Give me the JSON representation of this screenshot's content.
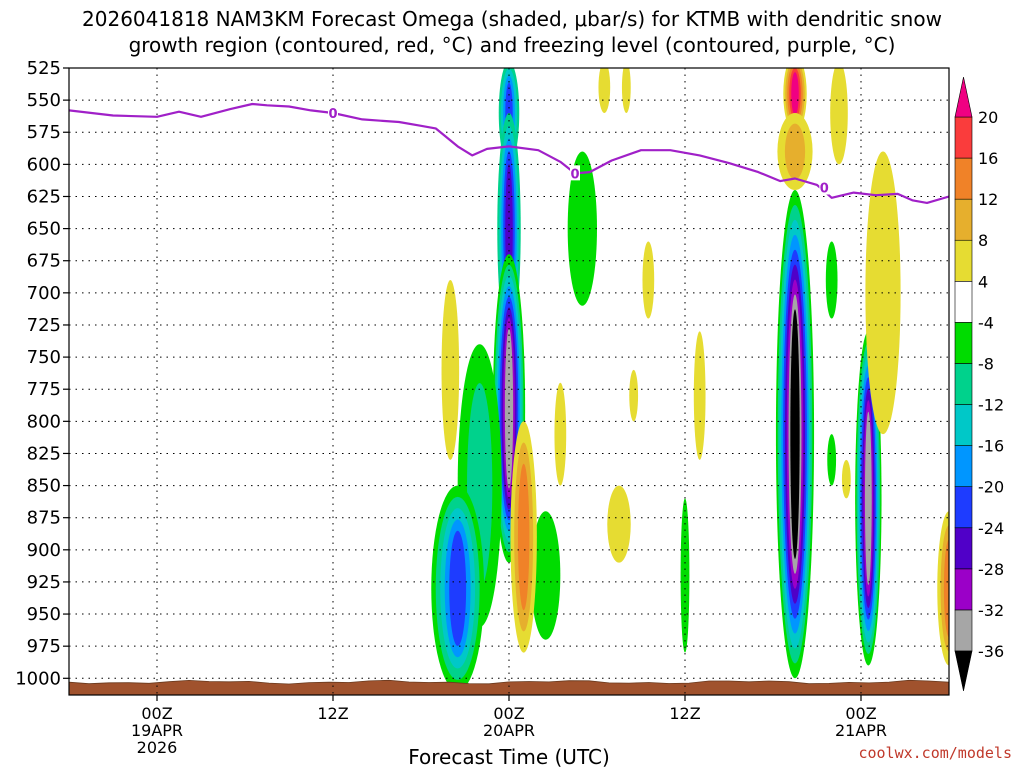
{
  "chart_data": {
    "type": "heatmap",
    "title_lines": [
      "2026041818 NAM3KM Forecast Omega (shaded, μbar/s) for KTMB with dendritic snow",
      "growth region (contoured, red, °C) and freezing level (contoured, purple, °C)"
    ],
    "xlabel": "Forecast Time (UTC)",
    "ylabel": "",
    "forecast_hours_range": [
      -6,
      54
    ],
    "pressure_range_hPa": [
      525,
      1013
    ],
    "y_ticks": [
      525,
      550,
      575,
      600,
      625,
      650,
      675,
      700,
      725,
      750,
      775,
      800,
      825,
      850,
      875,
      900,
      925,
      950,
      975,
      1000
    ],
    "x_ticks": [
      {
        "hour": 0,
        "label": "00Z",
        "sub1": "19APR",
        "sub2": "2026"
      },
      {
        "hour": 12,
        "label": "12Z",
        "sub1": "",
        "sub2": ""
      },
      {
        "hour": 24,
        "label": "00Z",
        "sub1": "20APR",
        "sub2": ""
      },
      {
        "hour": 36,
        "label": "12Z",
        "sub1": "",
        "sub2": ""
      },
      {
        "hour": 48,
        "label": "00Z",
        "sub1": "21APR",
        "sub2": ""
      }
    ],
    "grid": true,
    "colorbar": {
      "units": "μbar/s",
      "levels": [
        -36,
        -32,
        -28,
        -24,
        -20,
        -16,
        -12,
        -8,
        -4,
        4,
        8,
        12,
        16,
        20
      ],
      "tick_labels": [
        "-36",
        "-32",
        "-28",
        "-24",
        "-20",
        "-16",
        "-12",
        "-8",
        "-4",
        "4",
        "8",
        "12",
        "16",
        "20"
      ],
      "colors": [
        "#000000",
        "#a6a6a6",
        "#9b00c8",
        "#5000c8",
        "#1e3cff",
        "#0096ff",
        "#00c8c8",
        "#00d28c",
        "#00dc00",
        "#ffffff",
        "#e6dc32",
        "#e6af2d",
        "#f08228",
        "#fa3c3c",
        "#f00082"
      ]
    },
    "freezing_level": {
      "label": "0",
      "color": "#a020c8",
      "points": [
        {
          "hour": -6,
          "hPa": 558
        },
        {
          "hour": -3,
          "hPa": 562
        },
        {
          "hour": 0,
          "hPa": 563
        },
        {
          "hour": 1.5,
          "hPa": 559
        },
        {
          "hour": 3,
          "hPa": 563
        },
        {
          "hour": 5,
          "hPa": 557
        },
        {
          "hour": 6.5,
          "hPa": 553
        },
        {
          "hour": 7.5,
          "hPa": 554
        },
        {
          "hour": 9,
          "hPa": 555
        },
        {
          "hour": 10.5,
          "hPa": 558
        },
        {
          "hour": 12,
          "hPa": 560
        },
        {
          "hour": 14,
          "hPa": 565
        },
        {
          "hour": 16.5,
          "hPa": 567
        },
        {
          "hour": 18,
          "hPa": 570
        },
        {
          "hour": 19,
          "hPa": 572
        },
        {
          "hour": 20.5,
          "hPa": 586
        },
        {
          "hour": 21.5,
          "hPa": 593
        },
        {
          "hour": 22.5,
          "hPa": 588
        },
        {
          "hour": 24,
          "hPa": 586
        },
        {
          "hour": 26,
          "hPa": 589
        },
        {
          "hour": 27.5,
          "hPa": 598
        },
        {
          "hour": 28.5,
          "hPa": 607
        },
        {
          "hour": 29.5,
          "hPa": 606
        },
        {
          "hour": 31,
          "hPa": 597
        },
        {
          "hour": 33,
          "hPa": 589
        },
        {
          "hour": 35,
          "hPa": 589
        },
        {
          "hour": 37,
          "hPa": 593
        },
        {
          "hour": 39,
          "hPa": 599
        },
        {
          "hour": 41,
          "hPa": 606
        },
        {
          "hour": 42.5,
          "hPa": 613
        },
        {
          "hour": 43.5,
          "hPa": 611
        },
        {
          "hour": 45,
          "hPa": 616
        },
        {
          "hour": 46,
          "hPa": 626
        },
        {
          "hour": 47.5,
          "hPa": 622
        },
        {
          "hour": 49,
          "hPa": 624
        },
        {
          "hour": 50.5,
          "hPa": 623
        },
        {
          "hour": 51.5,
          "hPa": 628
        },
        {
          "hour": 52.5,
          "hPa": 630
        },
        {
          "hour": 54,
          "hPa": 625
        }
      ],
      "label_positions": [
        {
          "hour": 12,
          "hPa": 560
        },
        {
          "hour": 28.5,
          "hPa": 607
        },
        {
          "hour": 45.5,
          "hPa": 618
        }
      ]
    },
    "terrain": {
      "color": "#a0522d",
      "top_hPa": 1003
    },
    "omega_features": [
      {
        "hour": 24,
        "center_hPa": 560,
        "half_height_hPa": 40,
        "half_width_hours": 0.7,
        "levels": [
          -8,
          -12,
          -16,
          -20
        ]
      },
      {
        "hour": 24,
        "center_hPa": 650,
        "half_height_hPa": 90,
        "half_width_hours": 0.8,
        "levels": [
          -8,
          -12,
          -16,
          -20,
          -24
        ]
      },
      {
        "hour": 24,
        "center_hPa": 790,
        "half_height_hPa": 120,
        "half_width_hours": 1.1,
        "levels": [
          -4,
          -8,
          -12,
          -16,
          -20,
          -24,
          -28,
          -32
        ]
      },
      {
        "hour": 22,
        "center_hPa": 850,
        "half_height_hPa": 110,
        "half_width_hours": 1.5,
        "levels": [
          -4,
          -8
        ]
      },
      {
        "hour": 20.5,
        "center_hPa": 930,
        "half_height_hPa": 80,
        "half_width_hours": 1.8,
        "levels": [
          -4,
          -8,
          -12,
          -16,
          -20
        ]
      },
      {
        "hour": 43.5,
        "center_hPa": 810,
        "half_height_hPa": 190,
        "half_width_hours": 1.3,
        "levels": [
          -4,
          -8,
          -12,
          -16,
          -20,
          -24,
          -28,
          -32,
          -36
        ]
      },
      {
        "hour": 48.5,
        "center_hPa": 860,
        "half_height_hPa": 130,
        "half_width_hours": 0.9,
        "levels": [
          -4,
          -8,
          -12,
          -16,
          -20,
          -24,
          -28,
          -32
        ]
      },
      {
        "hour": 29,
        "center_hPa": 650,
        "half_height_hPa": 60,
        "half_width_hours": 1.0,
        "levels": [
          -4
        ]
      },
      {
        "hour": 26.5,
        "center_hPa": 920,
        "half_height_hPa": 50,
        "half_width_hours": 1.0,
        "levels": [
          -4
        ]
      },
      {
        "hour": 46,
        "center_hPa": 690,
        "half_height_hPa": 30,
        "half_width_hours": 0.4,
        "levels": [
          -4
        ]
      },
      {
        "hour": 46,
        "center_hPa": 830,
        "half_height_hPa": 20,
        "half_width_hours": 0.3,
        "levels": [
          -4
        ]
      },
      {
        "hour": 36,
        "center_hPa": 920,
        "half_height_hPa": 60,
        "half_width_hours": 0.3,
        "levels": [
          -4
        ]
      },
      {
        "hour": 43.5,
        "center_hPa": 545,
        "half_height_hPa": 30,
        "half_width_hours": 0.8,
        "levels": [
          4,
          8,
          12,
          16,
          20
        ]
      },
      {
        "hour": 43.5,
        "center_hPa": 590,
        "half_height_hPa": 30,
        "half_width_hours": 1.2,
        "levels": [
          4,
          8
        ]
      },
      {
        "hour": 49.5,
        "center_hPa": 700,
        "half_height_hPa": 110,
        "half_width_hours": 1.2,
        "levels": [
          4
        ]
      },
      {
        "hour": 46.5,
        "center_hPa": 560,
        "half_height_hPa": 40,
        "half_width_hours": 0.6,
        "levels": [
          4
        ]
      },
      {
        "hour": 25,
        "center_hPa": 890,
        "half_height_hPa": 90,
        "half_width_hours": 0.9,
        "levels": [
          4,
          8,
          12
        ]
      },
      {
        "hour": 20,
        "center_hPa": 760,
        "half_height_hPa": 70,
        "half_width_hours": 0.6,
        "levels": [
          4
        ]
      },
      {
        "hour": 30.5,
        "center_hPa": 540,
        "half_height_hPa": 20,
        "half_width_hours": 0.4,
        "levels": [
          4
        ]
      },
      {
        "hour": 32,
        "center_hPa": 540,
        "half_height_hPa": 20,
        "half_width_hours": 0.3,
        "levels": [
          4
        ]
      },
      {
        "hour": 33.5,
        "center_hPa": 690,
        "half_height_hPa": 30,
        "half_width_hours": 0.4,
        "levels": [
          4
        ]
      },
      {
        "hour": 27.5,
        "center_hPa": 810,
        "half_height_hPa": 40,
        "half_width_hours": 0.4,
        "levels": [
          4
        ]
      },
      {
        "hour": 32.5,
        "center_hPa": 780,
        "half_height_hPa": 20,
        "half_width_hours": 0.3,
        "levels": [
          4
        ]
      },
      {
        "hour": 31.5,
        "center_hPa": 880,
        "half_height_hPa": 30,
        "half_width_hours": 0.8,
        "levels": [
          4
        ]
      },
      {
        "hour": 37,
        "center_hPa": 780,
        "half_height_hPa": 50,
        "half_width_hours": 0.4,
        "levels": [
          4
        ]
      },
      {
        "hour": 47,
        "center_hPa": 845,
        "half_height_hPa": 15,
        "half_width_hours": 0.3,
        "levels": [
          4
        ]
      },
      {
        "hour": 54,
        "center_hPa": 930,
        "half_height_hPa": 60,
        "half_width_hours": 0.8,
        "levels": [
          4,
          8,
          12
        ]
      }
    ]
  },
  "credit": "coolwx.com/models"
}
